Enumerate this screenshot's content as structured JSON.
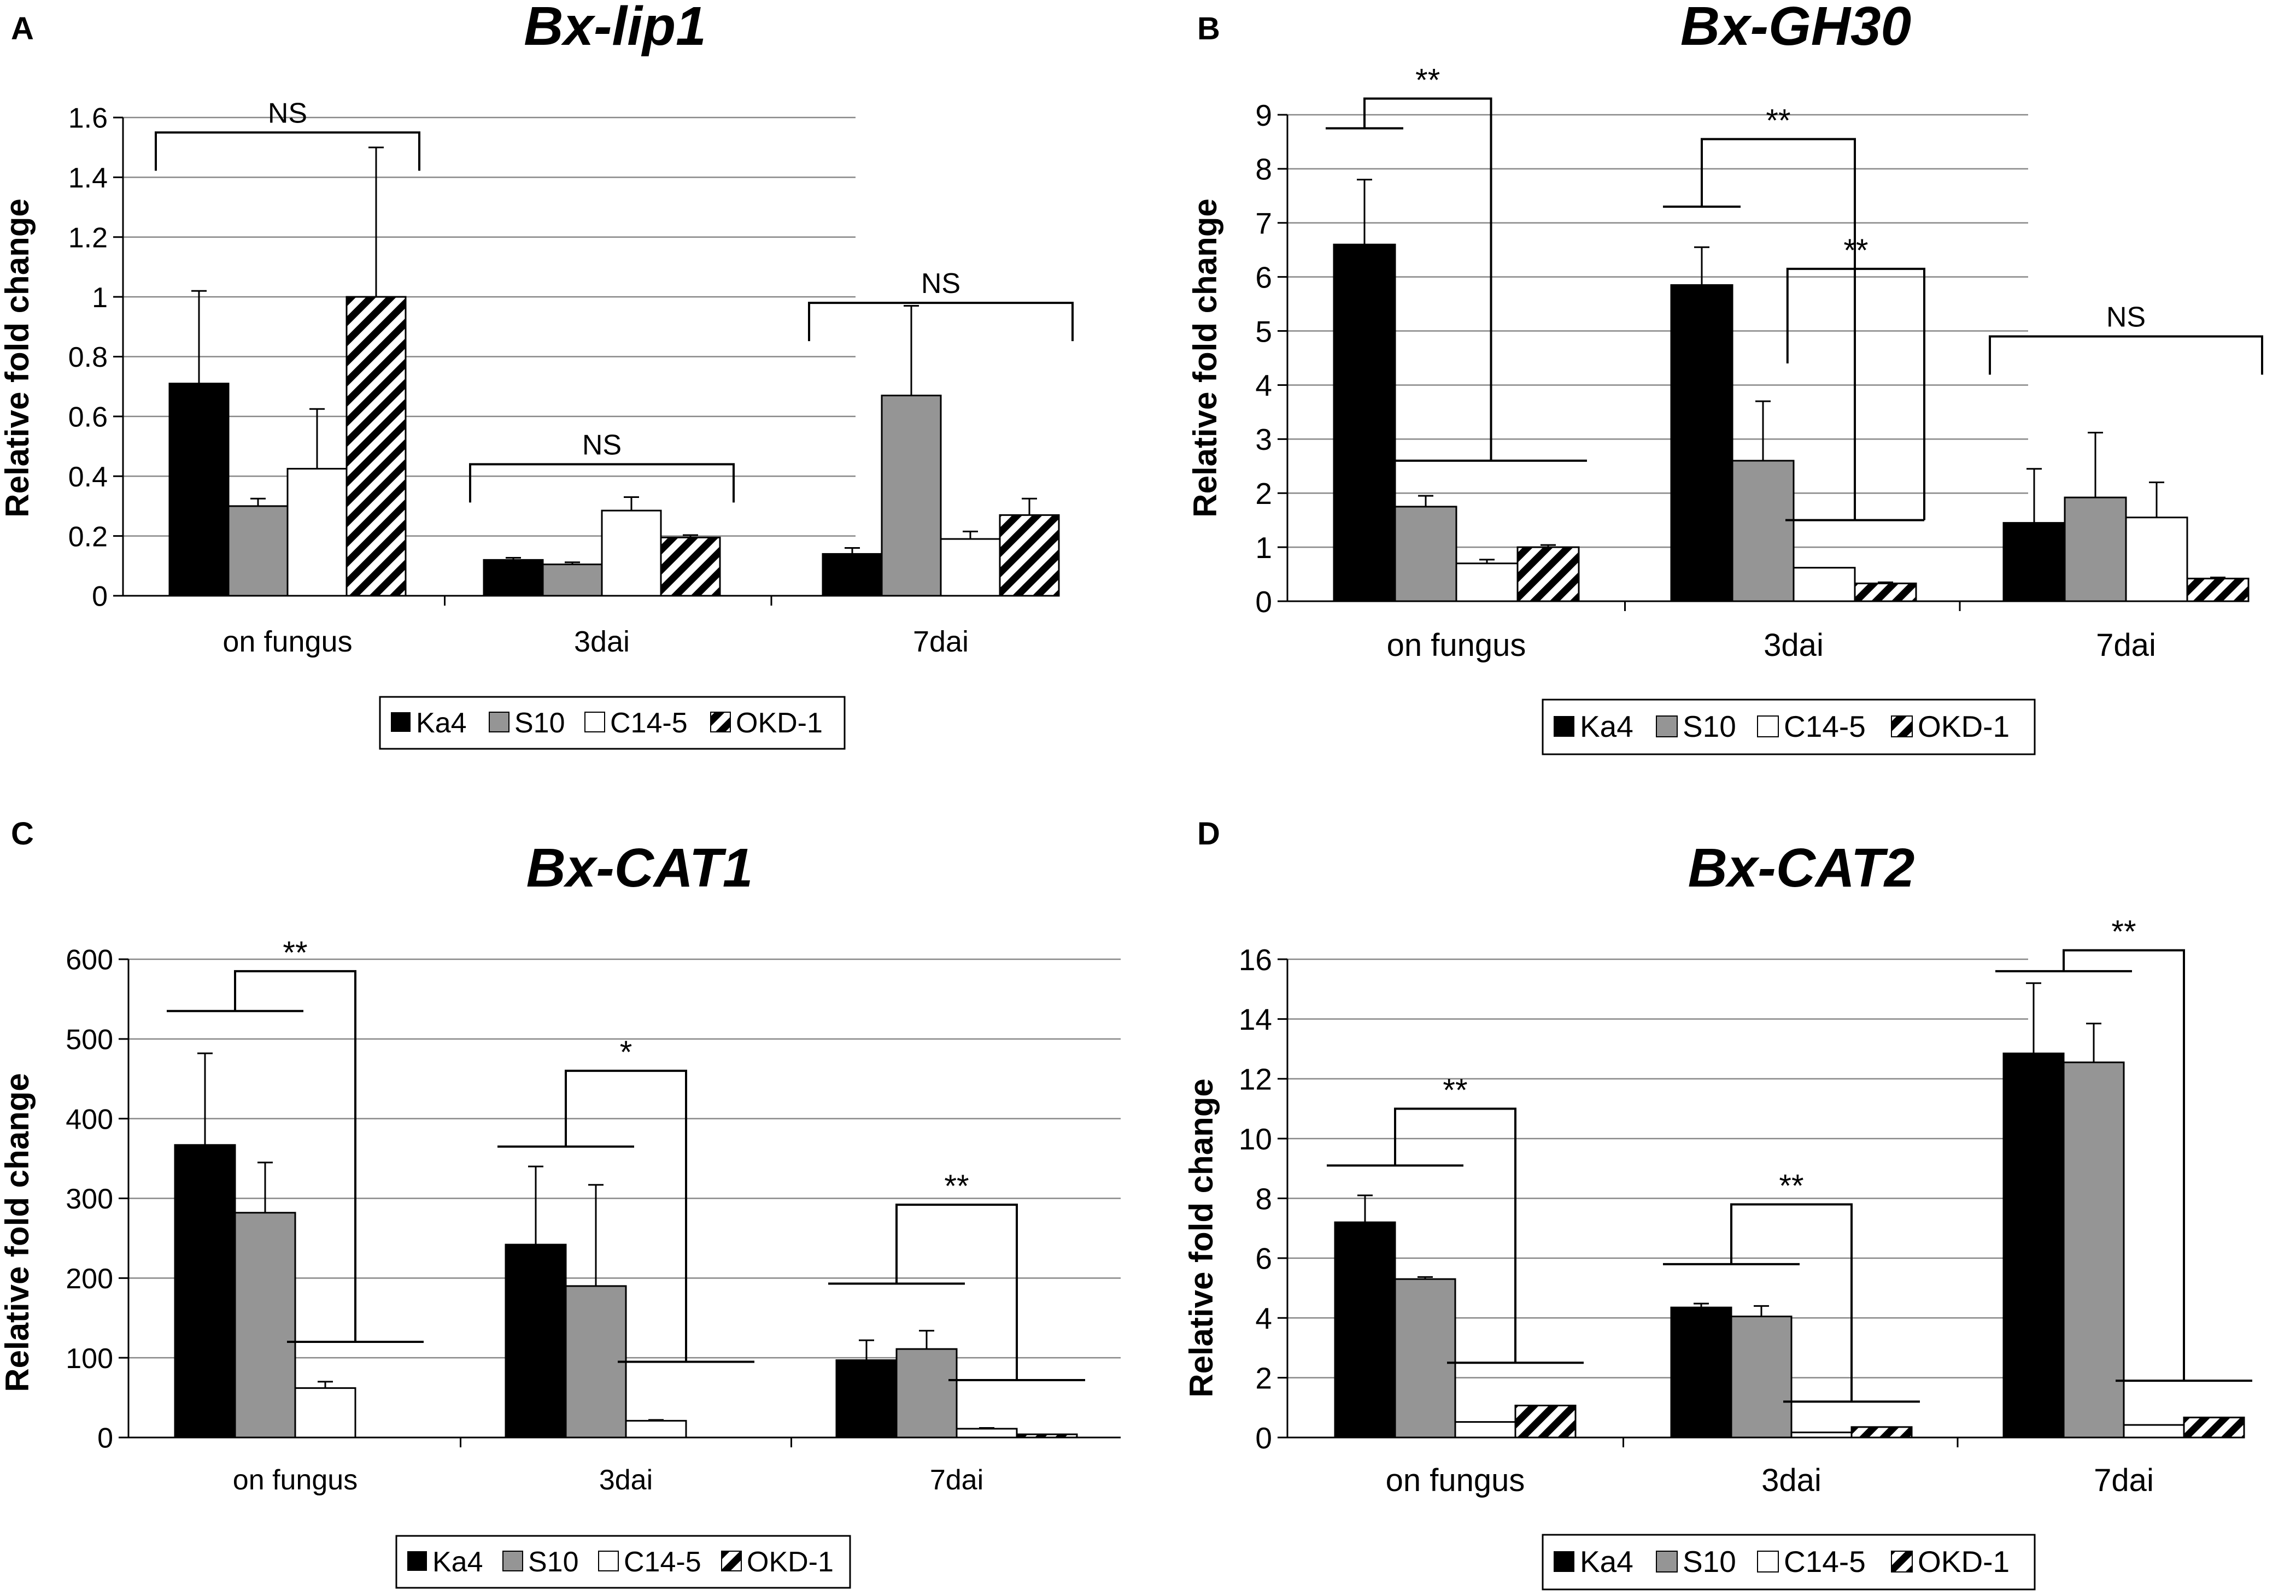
{
  "colors": {
    "ka4": "#000000",
    "s10": "#959595",
    "c14": "#ffffff",
    "okd": "hatch",
    "grid": "#888888",
    "text": "#000000"
  },
  "chart_data": [
    {
      "panel": "A",
      "type": "bar",
      "title": "Bx-lip1",
      "ylabel": "Relative fold change",
      "categories": [
        "on fungus",
        "3dai",
        "7dai"
      ],
      "ylim": [
        0,
        1.6
      ],
      "yticks": [
        "0",
        "0.2",
        "0.4",
        "0.6",
        "0.8",
        "1",
        "1.2",
        "1.4",
        "1.6"
      ],
      "series": [
        {
          "name": "Ka4",
          "values": [
            0.71,
            0.12,
            0.14
          ],
          "errors": [
            0.31,
            0.007,
            0.02
          ]
        },
        {
          "name": "S10",
          "values": [
            0.3,
            0.105,
            0.67
          ],
          "errors": [
            0.025,
            0.007,
            0.3
          ]
        },
        {
          "name": "C14-5",
          "values": [
            0.425,
            0.285,
            0.19
          ],
          "errors": [
            0.2,
            0.045,
            0.025
          ]
        },
        {
          "name": "OKD-1",
          "values": [
            1.0,
            0.195,
            0.27
          ],
          "errors": [
            0.5,
            0.008,
            0.055
          ]
        }
      ],
      "annotations": [
        {
          "label": "NS",
          "type": "ns",
          "category": 0,
          "y": 1.55
        },
        {
          "label": "NS",
          "type": "ns",
          "category": 1,
          "y": 0.44
        },
        {
          "label": "NS",
          "type": "ns",
          "category": 2,
          "y": 0.98
        }
      ],
      "legend": [
        "Ka4",
        "S10",
        "C14-5",
        "OKD-1"
      ]
    },
    {
      "panel": "B",
      "type": "bar",
      "title": "Bx-GH30",
      "ylabel": "Relative fold change",
      "categories": [
        "on fungus",
        "3dai",
        "7dai"
      ],
      "ylim": [
        0,
        9
      ],
      "yticks": [
        "0",
        "1",
        "2",
        "3",
        "4",
        "5",
        "6",
        "7",
        "8",
        "9"
      ],
      "series": [
        {
          "name": "Ka4",
          "values": [
            6.6,
            5.85,
            1.45
          ],
          "errors": [
            1.2,
            0.7,
            1.0
          ]
        },
        {
          "name": "S10",
          "values": [
            1.75,
            2.6,
            1.92
          ],
          "errors": [
            0.2,
            1.1,
            1.2
          ]
        },
        {
          "name": "C14-5",
          "values": [
            0.7,
            0.62,
            1.55
          ],
          "errors": [
            0.07,
            0.0,
            0.65
          ]
        },
        {
          "name": "OKD-1",
          "values": [
            1.0,
            0.33,
            0.42
          ],
          "errors": [
            0.04,
            0.02,
            0.02
          ]
        }
      ],
      "annotations": [
        {
          "label": "**",
          "type": "sig",
          "category": 0,
          "y": 9.3,
          "leftLevel": 8.75,
          "rightLevel": 2.6,
          "leftSpan": [
            0,
            0
          ],
          "rightSpan": [
            1,
            3
          ]
        },
        {
          "label": "**",
          "type": "sig",
          "category": 1,
          "y": 8.55,
          "leftLevel": 7.3,
          "rightLevel": 1.5,
          "leftSpan": [
            0,
            0
          ],
          "rightSpan": [
            2,
            3
          ]
        },
        {
          "label": "**",
          "type": "sig2",
          "category": 1,
          "y": 6.15,
          "leftLevel": 4.4,
          "rightLevel": 1.5
        },
        {
          "label": "NS",
          "type": "ns",
          "category": 2,
          "y": 4.9
        }
      ],
      "legend": [
        "Ka4",
        "S10",
        "C14-5",
        "OKD-1"
      ]
    },
    {
      "panel": "C",
      "type": "bar",
      "title": "Bx-CAT1",
      "ylabel": "Relative fold change",
      "categories": [
        "on fungus",
        "3dai",
        "7dai"
      ],
      "ylim": [
        0,
        600
      ],
      "yticks": [
        "0",
        "100",
        "200",
        "300",
        "400",
        "500",
        "600"
      ],
      "series": [
        {
          "name": "Ka4",
          "values": [
            367,
            242,
            97
          ],
          "errors": [
            115,
            98,
            25
          ]
        },
        {
          "name": "S10",
          "values": [
            282,
            190,
            111
          ],
          "errors": [
            63,
            127,
            23
          ]
        },
        {
          "name": "C14-5",
          "values": [
            62,
            21,
            11
          ],
          "errors": [
            8,
            1,
            1
          ]
        },
        {
          "name": "OKD-1",
          "values": [
            0,
            0,
            4
          ],
          "errors": [
            0,
            0,
            0
          ]
        }
      ],
      "annotations": [
        {
          "label": "**",
          "type": "sig",
          "category": 0,
          "y": 585,
          "leftLevel": 535,
          "rightLevel": 120,
          "leftSpan": [
            0,
            1
          ],
          "rightSpan": [
            2,
            3
          ]
        },
        {
          "label": "*",
          "type": "sig",
          "category": 1,
          "y": 460,
          "leftLevel": 365,
          "rightLevel": 95,
          "leftSpan": [
            0,
            1
          ],
          "rightSpan": [
            2,
            3
          ]
        },
        {
          "label": "**",
          "type": "sig",
          "category": 2,
          "y": 292,
          "leftLevel": 193,
          "rightLevel": 72,
          "leftSpan": [
            0,
            1
          ],
          "rightSpan": [
            2,
            3
          ]
        }
      ],
      "legend": [
        "Ka4",
        "S10",
        "C14-5",
        "OKD-1"
      ]
    },
    {
      "panel": "D",
      "type": "bar",
      "title": "Bx-CAT2",
      "ylabel": "Relative fold change",
      "categories": [
        "on fungus",
        "3dai",
        "7dai"
      ],
      "ylim": [
        0,
        16
      ],
      "yticks": [
        "0",
        "2",
        "4",
        "6",
        "8",
        "10",
        "12",
        "14",
        "16"
      ],
      "series": [
        {
          "name": "Ka4",
          "values": [
            7.2,
            4.35,
            12.85
          ],
          "errors": [
            0.9,
            0.13,
            2.35
          ]
        },
        {
          "name": "S10",
          "values": [
            5.3,
            4.05,
            12.55
          ],
          "errors": [
            0.07,
            0.35,
            1.3
          ]
        },
        {
          "name": "C14-5",
          "values": [
            0.52,
            0.17,
            0.42
          ],
          "errors": [
            0.0,
            0.0,
            0.0
          ]
        },
        {
          "name": "OKD-1",
          "values": [
            1.07,
            0.35,
            0.67
          ],
          "errors": [
            0.0,
            0.0,
            0.0
          ]
        }
      ],
      "annotations": [
        {
          "label": "**",
          "type": "sig",
          "category": 0,
          "y": 11.0,
          "leftLevel": 9.1,
          "rightLevel": 2.5,
          "leftSpan": [
            0,
            1
          ],
          "rightSpan": [
            2,
            3
          ]
        },
        {
          "label": "**",
          "type": "sig",
          "category": 1,
          "y": 7.8,
          "leftLevel": 5.8,
          "rightLevel": 1.2,
          "leftSpan": [
            0,
            1
          ],
          "rightSpan": [
            2,
            3
          ]
        },
        {
          "label": "**",
          "type": "sig",
          "category": 2,
          "y": 16.3,
          "leftLevel": 15.6,
          "rightLevel": 1.9,
          "leftSpan": [
            0,
            1
          ],
          "rightSpan": [
            2,
            3
          ]
        }
      ],
      "legend": [
        "Ka4",
        "S10",
        "C14-5",
        "OKD-1"
      ]
    }
  ]
}
